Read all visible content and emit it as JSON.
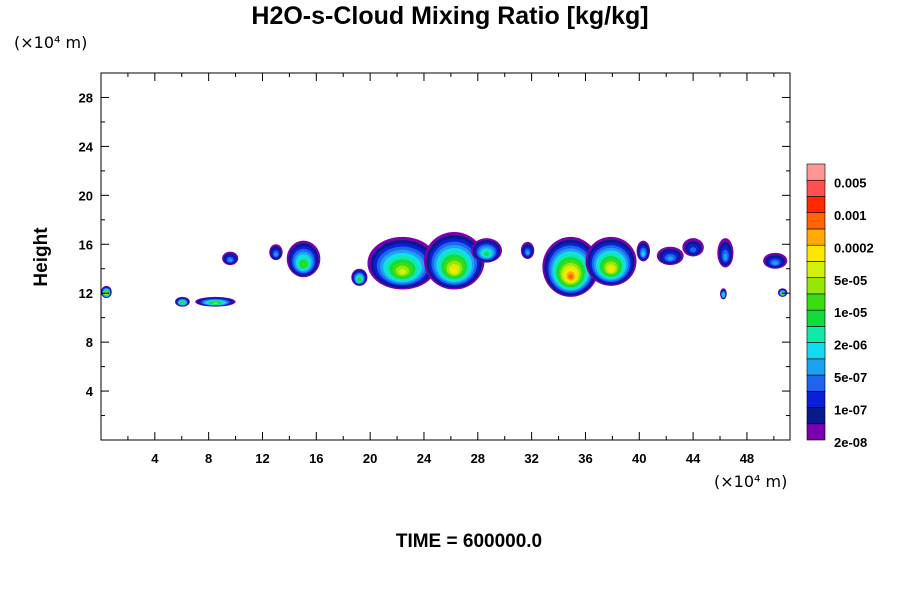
{
  "chart_data": {
    "type": "heatmap",
    "title": "H2O-s-Cloud Mixing Ratio [kg/kg]",
    "ylabel": "Height",
    "xunit": "(×10⁴ m)",
    "yunit": "(×10⁴ m)",
    "footer": "TIME = 600000.0",
    "xlim": [
      0,
      51.2
    ],
    "ylim": [
      0,
      30
    ],
    "xticks": [
      "4",
      "8",
      "12",
      "16",
      "20",
      "24",
      "28",
      "32",
      "36",
      "40",
      "44",
      "48"
    ],
    "yticks": [
      "4",
      "8",
      "12",
      "16",
      "20",
      "24",
      "28"
    ],
    "colorbar": {
      "labels": [
        "0.005",
        "0.001",
        "0.0002",
        "5e-05",
        "1e-05",
        "2e-06",
        "5e-07",
        "1e-07",
        "2e-08"
      ],
      "colors": [
        "#7a00b0",
        "#061a8c",
        "#0a1fd8",
        "#1e64f0",
        "#1ea0f0",
        "#12dcf0",
        "#12e8a8",
        "#12dc3c",
        "#3cdc12",
        "#96e60a",
        "#d2f00a",
        "#ffe600",
        "#ffaa00",
        "#ff6400",
        "#ff2800",
        "#ff5050",
        "#ff9696"
      ]
    },
    "regions": [
      {
        "x": [
          0.0,
          0.8
        ],
        "y": [
          11.6,
          12.6
        ],
        "peak": 12
      },
      {
        "x": [
          5.5,
          6.6
        ],
        "y": [
          10.9,
          11.7
        ],
        "peak": 9
      },
      {
        "x": [
          7.0,
          10.0
        ],
        "y": [
          10.9,
          11.7
        ],
        "peak": 9
      },
      {
        "x": [
          9.0,
          10.2
        ],
        "y": [
          14.3,
          15.4
        ],
        "peak": 4
      },
      {
        "x": [
          12.5,
          13.5
        ],
        "y": [
          14.7,
          16.0
        ],
        "peak": 4
      },
      {
        "x": [
          13.8,
          16.3
        ],
        "y": [
          13.3,
          16.3
        ],
        "peak": 8
      },
      {
        "x": [
          18.6,
          19.8
        ],
        "y": [
          12.6,
          14.0
        ],
        "peak": 8
      },
      {
        "x": [
          19.8,
          25.0
        ],
        "y": [
          12.3,
          16.6
        ],
        "peak": 10
      },
      {
        "x": [
          24.0,
          28.5
        ],
        "y": [
          12.3,
          17.0
        ],
        "peak": 11
      },
      {
        "x": [
          27.5,
          29.8
        ],
        "y": [
          14.5,
          16.5
        ],
        "peak": 7
      },
      {
        "x": [
          31.2,
          32.2
        ],
        "y": [
          14.8,
          16.2
        ],
        "peak": 4
      },
      {
        "x": [
          32.8,
          37.0
        ],
        "y": [
          11.7,
          16.6
        ],
        "peak": 13
      },
      {
        "x": [
          36.0,
          39.8
        ],
        "y": [
          12.6,
          16.6
        ],
        "peak": 11
      },
      {
        "x": [
          39.8,
          40.8
        ],
        "y": [
          14.6,
          16.3
        ],
        "peak": 5
      },
      {
        "x": [
          41.3,
          43.3
        ],
        "y": [
          14.3,
          15.8
        ],
        "peak": 4
      },
      {
        "x": [
          43.2,
          44.8
        ],
        "y": [
          15.0,
          16.5
        ],
        "peak": 3
      },
      {
        "x": [
          45.8,
          47.0
        ],
        "y": [
          14.1,
          16.5
        ],
        "peak": 4
      },
      {
        "x": [
          46.0,
          46.5
        ],
        "y": [
          11.5,
          12.4
        ],
        "peak": 7
      },
      {
        "x": [
          49.2,
          51.0
        ],
        "y": [
          14.0,
          15.3
        ],
        "peak": 4
      },
      {
        "x": [
          50.3,
          51.0
        ],
        "y": [
          11.7,
          12.4
        ],
        "peak": 9
      }
    ]
  }
}
